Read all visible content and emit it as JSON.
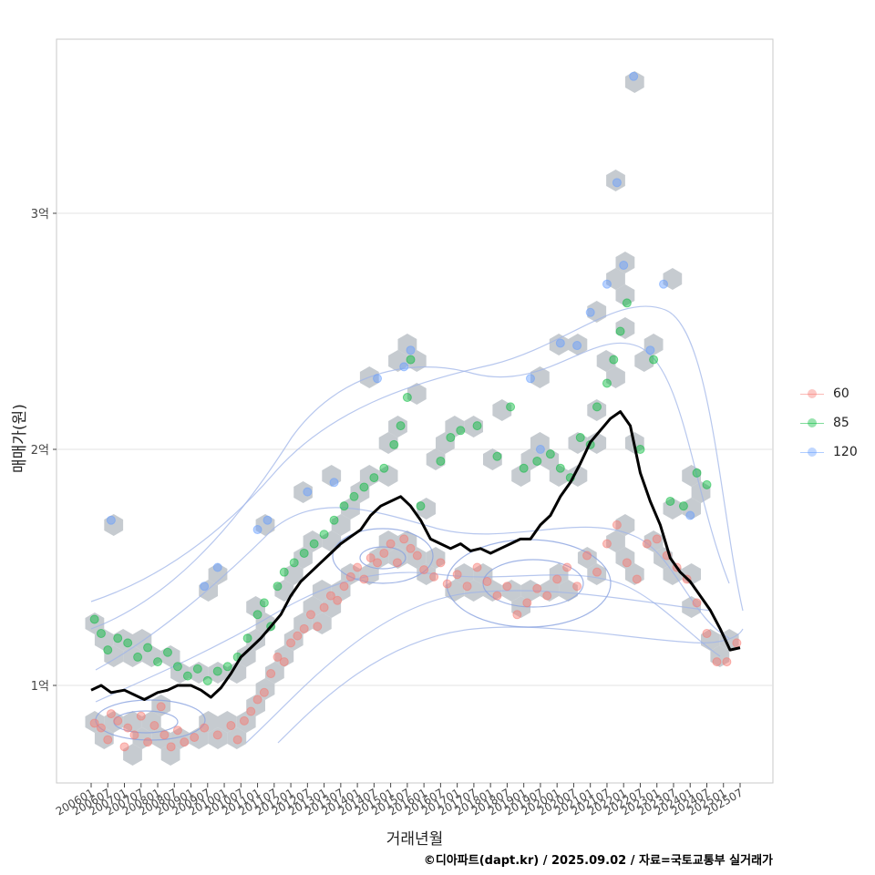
{
  "chart_data": {
    "type": "scatter",
    "title": "",
    "xlabel": "거래년월",
    "ylabel": "매매가(원)",
    "caption": "©디아파트(dapt.kr) / 2025.09.02 / 자료=국토교통부 실거래가",
    "ylim": [
      0.6,
      3.8
    ],
    "xlim": [
      2006.0,
      2025.5
    ],
    "y_ticks": [
      {
        "value": 1,
        "label": "1억"
      },
      {
        "value": 2,
        "label": "2억"
      },
      {
        "value": 3,
        "label": "3억"
      }
    ],
    "x_ticks": [
      "200601",
      "200607",
      "200701",
      "200707",
      "200801",
      "200807",
      "200901",
      "200907",
      "201001",
      "201007",
      "201101",
      "201107",
      "201201",
      "201207",
      "201301",
      "201307",
      "201401",
      "201407",
      "201501",
      "201507",
      "201601",
      "201607",
      "201701",
      "201707",
      "201801",
      "201807",
      "201901",
      "201907",
      "202001",
      "202007",
      "202101",
      "202107",
      "202201",
      "202207",
      "202301",
      "202307",
      "202401",
      "202407",
      "202501",
      "202507"
    ],
    "legend": [
      {
        "label": "60",
        "color": "#F8766D"
      },
      {
        "label": "85",
        "color": "#00BA38"
      },
      {
        "label": "120",
        "color": "#619CFF"
      }
    ],
    "trend_line": {
      "name": "moving average",
      "x": [
        2006.0,
        2006.3,
        2006.6,
        2007.0,
        2007.3,
        2007.6,
        2008.0,
        2008.3,
        2008.6,
        2009.0,
        2009.3,
        2009.6,
        2009.9,
        2010.2,
        2010.5,
        2010.8,
        2011.1,
        2011.4,
        2011.7,
        2012.0,
        2012.3,
        2012.6,
        2012.9,
        2013.2,
        2013.5,
        2013.8,
        2014.1,
        2014.4,
        2014.7,
        2015.0,
        2015.3,
        2015.6,
        2015.9,
        2016.2,
        2016.5,
        2016.8,
        2017.1,
        2017.4,
        2017.7,
        2018.0,
        2018.3,
        2018.6,
        2018.9,
        2019.2,
        2019.5,
        2019.8,
        2020.1,
        2020.4,
        2020.7,
        2021.0,
        2021.3,
        2021.6,
        2021.9,
        2022.2,
        2022.5,
        2022.8,
        2023.1,
        2023.4,
        2023.7,
        2024.0,
        2024.3,
        2024.6,
        2024.9,
        2025.2,
        2025.5
      ],
      "y": [
        0.98,
        1.0,
        0.97,
        0.98,
        0.96,
        0.94,
        0.97,
        0.98,
        1.0,
        1.0,
        0.98,
        0.95,
        0.99,
        1.05,
        1.12,
        1.16,
        1.2,
        1.25,
        1.3,
        1.38,
        1.44,
        1.48,
        1.52,
        1.56,
        1.6,
        1.63,
        1.66,
        1.72,
        1.76,
        1.78,
        1.8,
        1.76,
        1.7,
        1.62,
        1.6,
        1.58,
        1.6,
        1.57,
        1.58,
        1.56,
        1.58,
        1.6,
        1.62,
        1.62,
        1.68,
        1.72,
        1.8,
        1.86,
        1.94,
        2.03,
        2.08,
        2.13,
        2.16,
        2.1,
        1.9,
        1.78,
        1.68,
        1.54,
        1.48,
        1.44,
        1.38,
        1.32,
        1.24,
        1.15,
        1.16
      ]
    },
    "series": [
      {
        "name": "60",
        "color": "#F8766D",
        "points": [
          [
            2006.1,
            0.84
          ],
          [
            2006.3,
            0.82
          ],
          [
            2006.5,
            0.77
          ],
          [
            2006.6,
            0.88
          ],
          [
            2006.8,
            0.85
          ],
          [
            2007.0,
            0.74
          ],
          [
            2007.1,
            0.82
          ],
          [
            2007.3,
            0.79
          ],
          [
            2007.5,
            0.87
          ],
          [
            2007.7,
            0.76
          ],
          [
            2007.9,
            0.83
          ],
          [
            2008.1,
            0.91
          ],
          [
            2008.2,
            0.79
          ],
          [
            2008.4,
            0.74
          ],
          [
            2008.6,
            0.81
          ],
          [
            2008.8,
            0.76
          ],
          [
            2009.1,
            0.78
          ],
          [
            2009.4,
            0.82
          ],
          [
            2009.8,
            0.79
          ],
          [
            2010.2,
            0.83
          ],
          [
            2010.4,
            0.77
          ],
          [
            2010.6,
            0.85
          ],
          [
            2010.8,
            0.89
          ],
          [
            2011.0,
            0.94
          ],
          [
            2011.2,
            0.97
          ],
          [
            2011.4,
            1.05
          ],
          [
            2011.6,
            1.12
          ],
          [
            2011.8,
            1.1
          ],
          [
            2012.0,
            1.18
          ],
          [
            2012.2,
            1.21
          ],
          [
            2012.4,
            1.24
          ],
          [
            2012.6,
            1.3
          ],
          [
            2012.8,
            1.25
          ],
          [
            2013.0,
            1.33
          ],
          [
            2013.2,
            1.38
          ],
          [
            2013.4,
            1.36
          ],
          [
            2013.6,
            1.42
          ],
          [
            2013.8,
            1.46
          ],
          [
            2014.0,
            1.5
          ],
          [
            2014.2,
            1.45
          ],
          [
            2014.4,
            1.54
          ],
          [
            2014.6,
            1.52
          ],
          [
            2014.8,
            1.56
          ],
          [
            2015.0,
            1.6
          ],
          [
            2015.2,
            1.52
          ],
          [
            2015.4,
            1.62
          ],
          [
            2015.6,
            1.58
          ],
          [
            2015.8,
            1.55
          ],
          [
            2016.0,
            1.49
          ],
          [
            2016.3,
            1.46
          ],
          [
            2016.5,
            1.52
          ],
          [
            2016.7,
            1.43
          ],
          [
            2017.0,
            1.47
          ],
          [
            2017.3,
            1.42
          ],
          [
            2017.6,
            1.5
          ],
          [
            2017.9,
            1.44
          ],
          [
            2018.2,
            1.38
          ],
          [
            2018.5,
            1.42
          ],
          [
            2018.8,
            1.3
          ],
          [
            2019.1,
            1.35
          ],
          [
            2019.4,
            1.41
          ],
          [
            2019.7,
            1.38
          ],
          [
            2020.0,
            1.45
          ],
          [
            2020.3,
            1.5
          ],
          [
            2020.6,
            1.42
          ],
          [
            2020.9,
            1.55
          ],
          [
            2021.2,
            1.48
          ],
          [
            2021.5,
            1.6
          ],
          [
            2021.8,
            1.68
          ],
          [
            2022.1,
            1.52
          ],
          [
            2022.4,
            1.45
          ],
          [
            2022.7,
            1.6
          ],
          [
            2023.0,
            1.62
          ],
          [
            2023.3,
            1.55
          ],
          [
            2023.6,
            1.5
          ],
          [
            2023.9,
            1.45
          ],
          [
            2024.2,
            1.35
          ],
          [
            2024.5,
            1.22
          ],
          [
            2024.8,
            1.1
          ],
          [
            2025.1,
            1.1
          ],
          [
            2025.4,
            1.18
          ]
        ]
      },
      {
        "name": "85",
        "color": "#00BA38",
        "points": [
          [
            2006.1,
            1.28
          ],
          [
            2006.3,
            1.22
          ],
          [
            2006.5,
            1.15
          ],
          [
            2006.8,
            1.2
          ],
          [
            2007.1,
            1.18
          ],
          [
            2007.4,
            1.12
          ],
          [
            2007.7,
            1.16
          ],
          [
            2008.0,
            1.1
          ],
          [
            2008.3,
            1.14
          ],
          [
            2008.6,
            1.08
          ],
          [
            2008.9,
            1.04
          ],
          [
            2009.2,
            1.07
          ],
          [
            2009.5,
            1.02
          ],
          [
            2009.8,
            1.06
          ],
          [
            2010.1,
            1.08
          ],
          [
            2010.4,
            1.12
          ],
          [
            2010.7,
            1.2
          ],
          [
            2011.0,
            1.3
          ],
          [
            2011.2,
            1.35
          ],
          [
            2011.4,
            1.25
          ],
          [
            2011.6,
            1.42
          ],
          [
            2011.8,
            1.48
          ],
          [
            2012.1,
            1.52
          ],
          [
            2012.4,
            1.56
          ],
          [
            2012.7,
            1.6
          ],
          [
            2013.0,
            1.64
          ],
          [
            2013.3,
            1.7
          ],
          [
            2013.6,
            1.76
          ],
          [
            2013.9,
            1.8
          ],
          [
            2014.2,
            1.84
          ],
          [
            2014.5,
            1.88
          ],
          [
            2014.8,
            1.92
          ],
          [
            2015.1,
            2.02
          ],
          [
            2015.3,
            2.1
          ],
          [
            2015.5,
            2.22
          ],
          [
            2015.6,
            2.38
          ],
          [
            2015.9,
            1.76
          ],
          [
            2016.5,
            1.95
          ],
          [
            2016.8,
            2.05
          ],
          [
            2017.1,
            2.08
          ],
          [
            2017.6,
            2.1
          ],
          [
            2018.2,
            1.97
          ],
          [
            2018.6,
            2.18
          ],
          [
            2019.0,
            1.92
          ],
          [
            2019.4,
            1.95
          ],
          [
            2019.8,
            1.98
          ],
          [
            2020.1,
            1.92
          ],
          [
            2020.4,
            1.88
          ],
          [
            2020.7,
            2.05
          ],
          [
            2021.0,
            2.02
          ],
          [
            2021.2,
            2.18
          ],
          [
            2021.5,
            2.28
          ],
          [
            2021.7,
            2.38
          ],
          [
            2021.9,
            2.5
          ],
          [
            2022.1,
            2.62
          ],
          [
            2022.5,
            2.0
          ],
          [
            2022.9,
            2.38
          ],
          [
            2023.4,
            1.78
          ],
          [
            2023.8,
            1.76
          ],
          [
            2024.2,
            1.9
          ],
          [
            2024.5,
            1.85
          ]
        ]
      },
      {
        "name": "120",
        "color": "#619CFF",
        "points": [
          [
            2006.6,
            1.7
          ],
          [
            2009.4,
            1.42
          ],
          [
            2009.8,
            1.5
          ],
          [
            2011.0,
            1.66
          ],
          [
            2011.3,
            1.7
          ],
          [
            2012.5,
            1.82
          ],
          [
            2013.3,
            1.86
          ],
          [
            2014.6,
            2.3
          ],
          [
            2015.4,
            2.35
          ],
          [
            2015.6,
            2.42
          ],
          [
            2019.2,
            2.3
          ],
          [
            2019.5,
            2.0
          ],
          [
            2020.1,
            2.45
          ],
          [
            2020.6,
            2.44
          ],
          [
            2021.0,
            2.58
          ],
          [
            2021.5,
            2.7
          ],
          [
            2021.8,
            3.13
          ],
          [
            2022.0,
            2.78
          ],
          [
            2022.3,
            3.58
          ],
          [
            2022.8,
            2.42
          ],
          [
            2023.2,
            2.7
          ],
          [
            2024.0,
            1.72
          ]
        ]
      }
    ]
  }
}
